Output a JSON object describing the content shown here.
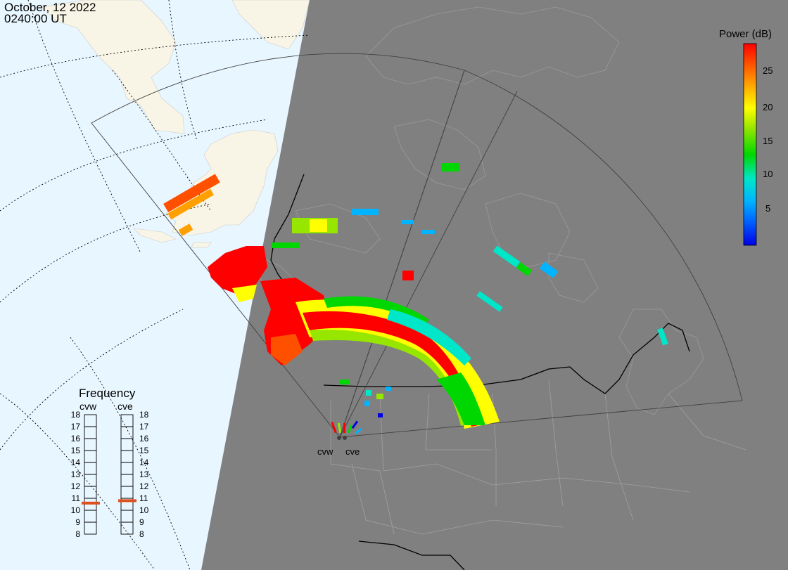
{
  "header": {
    "date": "October, 12 2022",
    "time": "0240:00 UT"
  },
  "colorbar": {
    "title": "Power (dB)",
    "ticks": [
      "25",
      "20",
      "15",
      "10",
      "5"
    ],
    "tick_values": [
      25,
      20,
      15,
      10,
      5
    ],
    "range": [
      0,
      30
    ],
    "colors": [
      "#0000e6",
      "#00b4ff",
      "#00e6c8",
      "#00d700",
      "#96e600",
      "#ffff00",
      "#ffa000",
      "#ff5000",
      "#ff0000"
    ]
  },
  "frequency_panel": {
    "title": "Frequency",
    "radars": [
      {
        "name": "cvw",
        "freq_mhz": 10.6
      },
      {
        "name": "cve",
        "freq_mhz": 10.8
      }
    ],
    "ticks": [
      "18",
      "17",
      "16",
      "15",
      "14",
      "13",
      "12",
      "11",
      "10",
      "9",
      "8"
    ]
  },
  "sites": [
    {
      "name": "cvw"
    },
    {
      "name": "cve"
    }
  ],
  "colors": {
    "night": "#808080",
    "day_ocean": "#e8f6ff",
    "day_land": "#f8f5e6",
    "marker": "#e0501e"
  }
}
